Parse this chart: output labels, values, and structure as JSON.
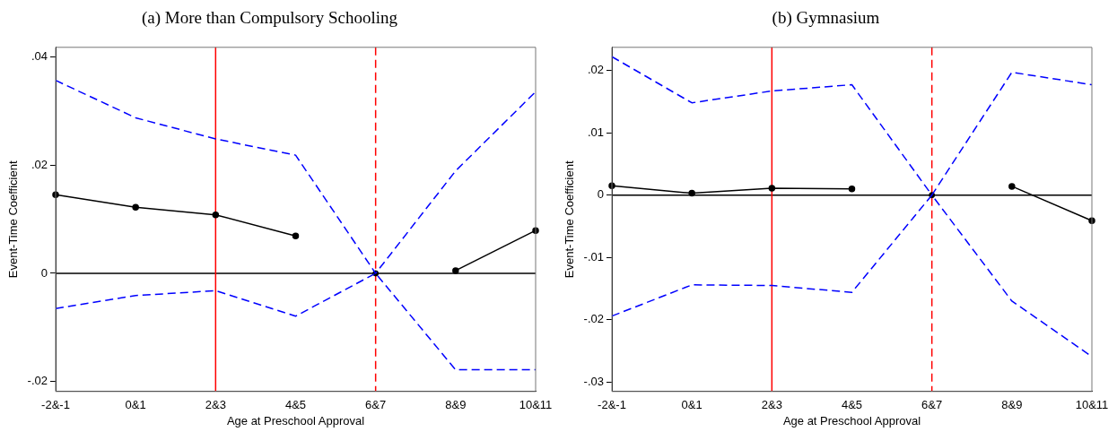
{
  "chart_data": [
    {
      "type": "line",
      "title": "(a) More than Compulsory Schooling",
      "xlabel": "Age at Preschool Approval",
      "ylabel": "Event-Time Coefficient",
      "categories": [
        "-2&-1",
        "0&1",
        "2&3",
        "4&5",
        "6&7",
        "8&9",
        "10&11"
      ],
      "ylim": [
        -0.0218,
        0.0417
      ],
      "yticks": [
        {
          "value": -0.02,
          "label": "-.02"
        },
        0,
        {
          "value": 0.02,
          "label": ".02"
        },
        {
          "value": 0.04,
          "label": ".04"
        }
      ],
      "grid": false,
      "legend": false,
      "series": [
        {
          "color": "#0000ff",
          "line_style": "dashed",
          "marker": "none",
          "values": [
            0.0356,
            0.0287,
            0.0248,
            0.0218,
            0,
            0.0189,
            0.0335
          ]
        },
        {
          "color": "#0000ff",
          "line_style": "dashed",
          "marker": "none",
          "values": [
            -0.0065,
            -0.0041,
            -0.0032,
            -0.0079,
            0,
            -0.0178,
            -0.0178
          ]
        },
        {
          "color": "#000000",
          "line_style": "solid",
          "marker": "circle",
          "values": [
            0.0145,
            0.0122,
            0.0108,
            0.0069,
            null,
            0.0005,
            0.0079
          ]
        },
        {
          "type": "scatter",
          "color": "#000000",
          "marker": "circle",
          "x": [
            "6&7"
          ],
          "values": [
            0
          ]
        }
      ],
      "ref_lines": [
        {
          "axis": "y",
          "value": 0,
          "color": "#000000",
          "line_style": "solid"
        },
        {
          "axis": "x",
          "value": "2&3",
          "color": "#ff0000",
          "line_style": "solid"
        },
        {
          "axis": "x",
          "value": "6&7",
          "color": "#ff0000",
          "line_style": "dashed"
        }
      ]
    },
    {
      "type": "line",
      "title": "(b) Gymnasium",
      "xlabel": "Age at Preschool Approval",
      "ylabel": "Event-Time Coefficient",
      "categories": [
        "-2&-1",
        "0&1",
        "2&3",
        "4&5",
        "6&7",
        "8&9",
        "10&11"
      ],
      "ylim": [
        -0.0315,
        0.0237
      ],
      "yticks": [
        {
          "value": -0.03,
          "label": "-.03"
        },
        {
          "value": -0.02,
          "label": "-.02"
        },
        {
          "value": -0.01,
          "label": "-.01"
        },
        0,
        {
          "value": 0.01,
          "label": ".01"
        },
        {
          "value": 0.02,
          "label": ".02"
        }
      ],
      "grid": false,
      "legend": false,
      "series": [
        {
          "color": "#0000ff",
          "line_style": "dashed",
          "marker": "none",
          "values": [
            0.0222,
            0.0148,
            0.0167,
            0.0177,
            0,
            0.0197,
            0.0177
          ]
        },
        {
          "color": "#0000ff",
          "line_style": "dashed",
          "marker": "none",
          "values": [
            -0.0194,
            -0.0144,
            -0.0145,
            -0.0156,
            0,
            -0.017,
            -0.0259
          ]
        },
        {
          "color": "#000000",
          "line_style": "solid",
          "marker": "circle",
          "values": [
            0.0015,
            0.0003,
            0.0011,
            0.001,
            null,
            0.0014,
            -0.0041
          ]
        },
        {
          "type": "scatter",
          "color": "#000000",
          "marker": "circle",
          "x": [
            "6&7"
          ],
          "values": [
            0
          ]
        }
      ],
      "ref_lines": [
        {
          "axis": "y",
          "value": 0,
          "color": "#000000",
          "line_style": "solid"
        },
        {
          "axis": "x",
          "value": "2&3",
          "color": "#ff0000",
          "line_style": "solid"
        },
        {
          "axis": "x",
          "value": "6&7",
          "color": "#ff0000",
          "line_style": "dashed"
        }
      ]
    }
  ]
}
